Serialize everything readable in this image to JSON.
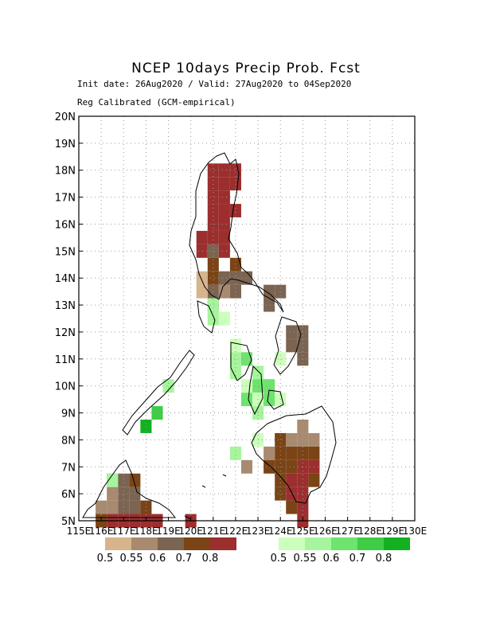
{
  "header": {
    "title": "NCEP 10days Precip Prob. Fcst",
    "subtitle_dates": "Init date: 26Aug2020 / Valid: 27Aug2020 to 04Sep2020",
    "subtitle_method": "Reg Calibrated (GCM-empirical)"
  },
  "axes": {
    "lat_labels": [
      "5N",
      "6N",
      "7N",
      "8N",
      "9N",
      "10N",
      "11N",
      "12N",
      "13N",
      "14N",
      "15N",
      "16N",
      "17N",
      "18N",
      "19N",
      "20N"
    ],
    "lon_labels": [
      "115E",
      "116E",
      "117E",
      "118E",
      "119E",
      "120E",
      "121E",
      "122E",
      "123E",
      "124E",
      "125E",
      "126E",
      "127E",
      "128E",
      "129E",
      "130E"
    ]
  },
  "colors": {
    "dry": [
      "#d6b48c",
      "#a88a70",
      "#7b6452",
      "#7a4416",
      "#9c2e2e"
    ],
    "wet": [
      "#ccffbb",
      "#a6f59c",
      "#6ee36e",
      "#3fcc46",
      "#13b022"
    ],
    "coast": "#000000",
    "grid": "#999999"
  },
  "legend": {
    "dry_labels": [
      "0.5",
      "0.55",
      "0.6",
      "0.7",
      "0.8"
    ],
    "wet_labels": [
      "0.5",
      "0.55",
      "0.6",
      "0.7",
      "0.8"
    ]
  },
  "cells": [
    [
      121,
      18,
      5
    ],
    [
      121.5,
      18,
      5
    ],
    [
      122,
      18,
      5
    ],
    [
      121,
      17.5,
      5
    ],
    [
      121.5,
      17.5,
      5
    ],
    [
      122,
      17.5,
      5
    ],
    [
      121,
      17,
      5
    ],
    [
      121.5,
      17,
      5
    ],
    [
      121,
      16.5,
      5
    ],
    [
      121.5,
      16.5,
      5
    ],
    [
      122,
      16.5,
      5
    ],
    [
      121,
      16,
      5
    ],
    [
      121.5,
      16,
      5
    ],
    [
      121,
      15.5,
      5
    ],
    [
      121.5,
      15.5,
      5
    ],
    [
      120.5,
      15.5,
      5
    ],
    [
      120.5,
      15,
      5
    ],
    [
      121,
      15,
      3
    ],
    [
      121.5,
      15,
      5
    ],
    [
      121,
      14.5,
      4
    ],
    [
      122,
      14.5,
      4
    ],
    [
      121,
      14,
      4
    ],
    [
      121.5,
      14,
      3
    ],
    [
      122,
      14,
      3
    ],
    [
      122.5,
      14,
      3
    ],
    [
      121,
      13.5,
      3
    ],
    [
      121.5,
      13.5,
      2
    ],
    [
      122,
      13.5,
      3
    ],
    [
      120.5,
      14,
      1
    ],
    [
      120.5,
      13.5,
      1
    ],
    [
      121,
      13,
      2
    ],
    [
      123.5,
      13.5,
      3
    ],
    [
      124,
      13.5,
      3
    ],
    [
      123.5,
      13,
      3
    ],
    [
      124.5,
      12,
      3
    ],
    [
      125,
      12,
      3
    ],
    [
      124.5,
      11.5,
      3
    ],
    [
      125,
      11.5,
      3
    ],
    [
      125,
      11,
      3
    ],
    [
      125,
      8.5,
      2
    ],
    [
      124.5,
      8,
      2
    ],
    [
      125,
      8,
      2
    ],
    [
      125.5,
      8,
      2
    ],
    [
      124,
      8,
      4
    ],
    [
      124.5,
      7.5,
      4
    ],
    [
      125,
      7.5,
      4
    ],
    [
      125.5,
      7.5,
      4
    ],
    [
      124,
      7.5,
      4
    ],
    [
      123.5,
      7.5,
      2
    ],
    [
      123.5,
      7,
      4
    ],
    [
      124,
      7,
      4
    ],
    [
      124.5,
      7,
      4
    ],
    [
      125,
      7,
      5
    ],
    [
      125.5,
      7,
      5
    ],
    [
      124,
      6.5,
      4
    ],
    [
      124.5,
      6.5,
      5
    ],
    [
      125,
      6.5,
      5
    ],
    [
      125.5,
      6.5,
      4
    ],
    [
      124,
      6,
      4
    ],
    [
      124.5,
      6,
      5
    ],
    [
      125,
      6,
      5
    ],
    [
      124.5,
      5.5,
      4
    ],
    [
      125,
      5.5,
      5
    ],
    [
      125,
      5,
      5
    ],
    [
      122.5,
      7,
      2
    ],
    [
      116.5,
      6.5,
      2
    ],
    [
      117,
      6.5,
      3
    ],
    [
      117,
      6,
      3
    ],
    [
      116.5,
      6,
      2
    ],
    [
      117.5,
      6,
      3
    ],
    [
      116.5,
      5.5,
      2
    ],
    [
      117,
      5.5,
      3
    ],
    [
      117.5,
      5.5,
      3
    ],
    [
      116,
      5.5,
      2
    ],
    [
      116,
      5,
      4
    ],
    [
      116.5,
      5,
      5
    ],
    [
      117,
      5,
      5
    ],
    [
      117.5,
      5,
      5
    ],
    [
      118,
      5,
      5
    ],
    [
      118.5,
      5,
      5
    ],
    [
      118,
      5.5,
      4
    ],
    [
      117.5,
      6.5,
      4
    ],
    [
      120,
      5,
      5
    ],
    [
      121,
      13,
      7
    ],
    [
      121.5,
      12.5,
      6
    ],
    [
      121,
      12.5,
      7
    ],
    [
      122,
      11.5,
      6
    ],
    [
      122,
      11,
      7
    ],
    [
      122.5,
      11,
      8
    ],
    [
      122,
      10.5,
      7
    ],
    [
      123,
      10.5,
      7
    ],
    [
      123,
      10,
      8
    ],
    [
      123.5,
      10,
      8
    ],
    [
      122.5,
      9.5,
      8
    ],
    [
      123,
      9.5,
      6
    ],
    [
      123.5,
      9.5,
      8
    ],
    [
      123,
      9,
      7
    ],
    [
      124,
      9.5,
      6
    ],
    [
      122.5,
      10,
      6
    ],
    [
      123,
      8,
      6
    ],
    [
      122,
      7.5,
      7
    ],
    [
      124,
      11,
      6
    ],
    [
      119,
      10,
      7
    ],
    [
      118.5,
      9,
      9
    ],
    [
      118,
      8.5,
      10
    ],
    [
      116.5,
      6.5,
      7
    ]
  ]
}
